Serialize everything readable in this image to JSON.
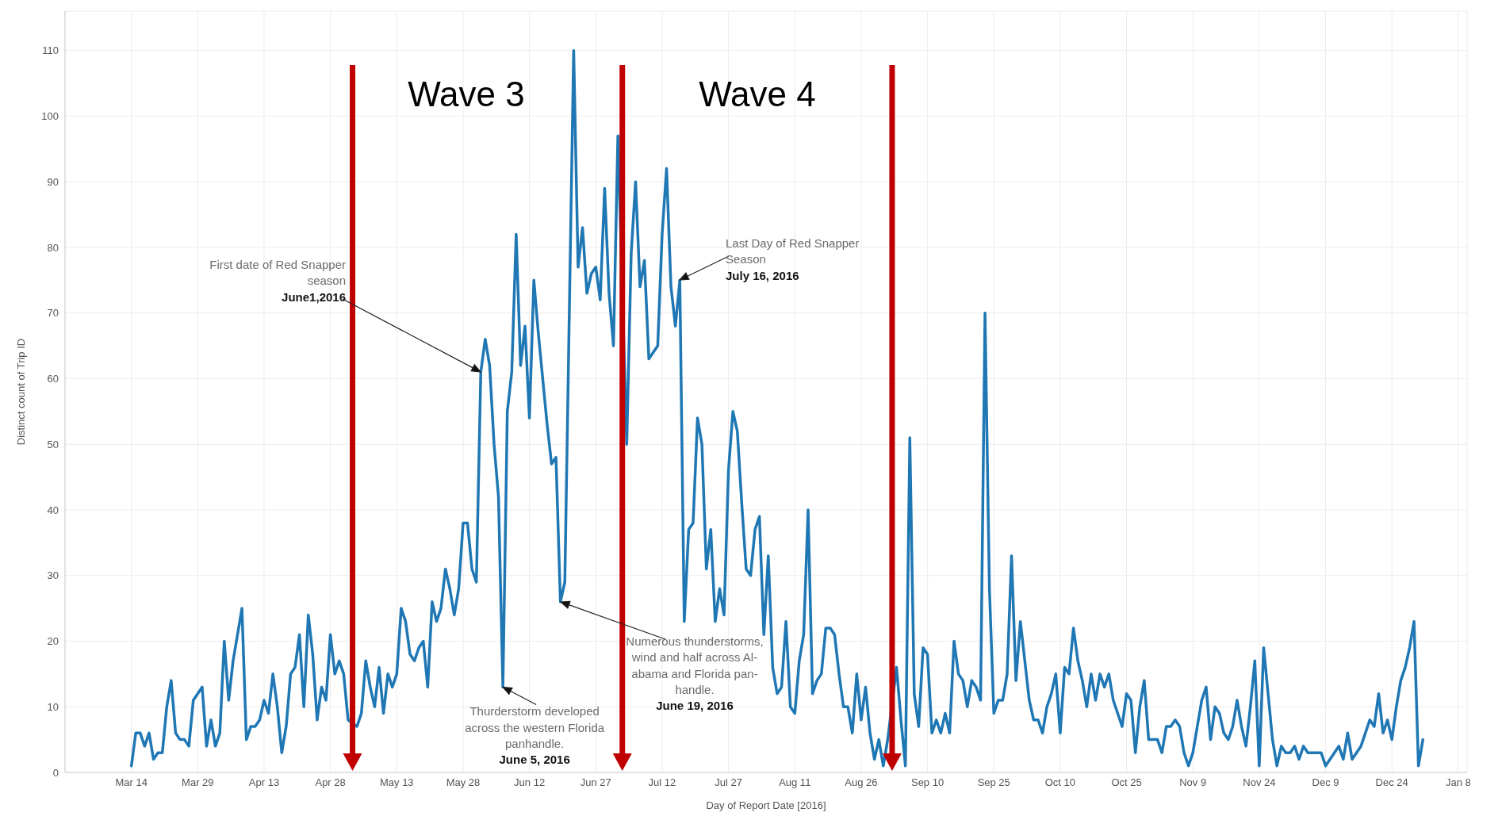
{
  "chart_data": {
    "type": "line",
    "xlabel": "Day of Report Date [2016]",
    "ylabel": "Distinct count of Trip ID",
    "x": [
      "2016-03-14",
      "2016-03-15",
      "2016-03-16",
      "2016-03-17",
      "2016-03-18",
      "2016-03-19",
      "2016-03-20",
      "2016-03-21",
      "2016-03-22",
      "2016-03-23",
      "2016-03-24",
      "2016-03-25",
      "2016-03-26",
      "2016-03-27",
      "2016-03-28",
      "2016-03-29",
      "2016-03-30",
      "2016-03-31",
      "2016-04-01",
      "2016-04-02",
      "2016-04-03",
      "2016-04-04",
      "2016-04-05",
      "2016-04-06",
      "2016-04-07",
      "2016-04-08",
      "2016-04-09",
      "2016-04-10",
      "2016-04-11",
      "2016-04-12",
      "2016-04-13",
      "2016-04-14",
      "2016-04-15",
      "2016-04-16",
      "2016-04-17",
      "2016-04-18",
      "2016-04-19",
      "2016-04-20",
      "2016-04-21",
      "2016-04-22",
      "2016-04-23",
      "2016-04-24",
      "2016-04-25",
      "2016-04-26",
      "2016-04-27",
      "2016-04-28",
      "2016-04-29",
      "2016-04-30",
      "2016-05-01",
      "2016-05-02",
      "2016-05-04",
      "2016-05-05",
      "2016-05-06",
      "2016-05-07",
      "2016-05-08",
      "2016-05-09",
      "2016-05-10",
      "2016-05-11",
      "2016-05-12",
      "2016-05-13",
      "2016-05-14",
      "2016-05-15",
      "2016-05-16",
      "2016-05-17",
      "2016-05-18",
      "2016-05-19",
      "2016-05-20",
      "2016-05-21",
      "2016-05-22",
      "2016-05-23",
      "2016-05-24",
      "2016-05-25",
      "2016-05-26",
      "2016-05-27",
      "2016-05-28",
      "2016-05-29",
      "2016-05-30",
      "2016-05-31",
      "2016-06-01",
      "2016-06-02",
      "2016-06-03",
      "2016-06-04",
      "2016-06-05",
      "2016-06-06",
      "2016-06-07",
      "2016-06-08",
      "2016-06-09",
      "2016-06-10",
      "2016-06-11",
      "2016-06-12",
      "2016-06-13",
      "2016-06-14",
      "2016-06-15",
      "2016-06-16",
      "2016-06-17",
      "2016-06-18",
      "2016-06-19",
      "2016-06-20",
      "2016-06-22",
      "2016-06-23",
      "2016-06-24",
      "2016-06-25",
      "2016-06-26",
      "2016-06-27",
      "2016-06-28",
      "2016-06-29",
      "2016-06-30",
      "2016-07-01",
      "2016-07-02",
      "2016-07-04",
      "2016-07-05",
      "2016-07-06",
      "2016-07-07",
      "2016-07-08",
      "2016-07-09",
      "2016-07-10",
      "2016-07-11",
      "2016-07-12",
      "2016-07-13",
      "2016-07-14",
      "2016-07-15",
      "2016-07-16",
      "2016-07-17",
      "2016-07-18",
      "2016-07-19",
      "2016-07-20",
      "2016-07-21",
      "2016-07-22",
      "2016-07-23",
      "2016-07-24",
      "2016-07-25",
      "2016-07-26",
      "2016-07-27",
      "2016-07-28",
      "2016-07-29",
      "2016-07-30",
      "2016-07-31",
      "2016-08-01",
      "2016-08-02",
      "2016-08-03",
      "2016-08-04",
      "2016-08-05",
      "2016-08-06",
      "2016-08-07",
      "2016-08-08",
      "2016-08-09",
      "2016-08-10",
      "2016-08-11",
      "2016-08-12",
      "2016-08-13",
      "2016-08-14",
      "2016-08-15",
      "2016-08-16",
      "2016-08-17",
      "2016-08-18",
      "2016-08-19",
      "2016-08-20",
      "2016-08-21",
      "2016-08-22",
      "2016-08-23",
      "2016-08-24",
      "2016-08-25",
      "2016-08-26",
      "2016-08-27",
      "2016-08-28",
      "2016-08-29",
      "2016-08-30",
      "2016-08-31",
      "2016-09-01",
      "2016-09-03",
      "2016-09-04",
      "2016-09-05",
      "2016-09-06",
      "2016-09-07",
      "2016-09-08",
      "2016-09-09",
      "2016-09-10",
      "2016-09-11",
      "2016-09-12",
      "2016-09-13",
      "2016-09-14",
      "2016-09-15",
      "2016-09-16",
      "2016-09-17",
      "2016-09-18",
      "2016-09-19",
      "2016-09-20",
      "2016-09-21",
      "2016-09-22",
      "2016-09-23",
      "2016-09-24",
      "2016-09-25",
      "2016-09-26",
      "2016-09-27",
      "2016-09-28",
      "2016-09-29",
      "2016-09-30",
      "2016-10-01",
      "2016-10-02",
      "2016-10-03",
      "2016-10-04",
      "2016-10-05",
      "2016-10-06",
      "2016-10-07",
      "2016-10-08",
      "2016-10-09",
      "2016-10-10",
      "2016-10-11",
      "2016-10-12",
      "2016-10-13",
      "2016-10-14",
      "2016-10-15",
      "2016-10-16",
      "2016-10-17",
      "2016-10-18",
      "2016-10-19",
      "2016-10-20",
      "2016-10-21",
      "2016-10-22",
      "2016-10-23",
      "2016-10-24",
      "2016-10-25",
      "2016-10-26",
      "2016-10-27",
      "2016-10-28",
      "2016-10-29",
      "2016-10-30",
      "2016-10-31",
      "2016-11-01",
      "2016-11-02",
      "2016-11-03",
      "2016-11-04",
      "2016-11-05",
      "2016-11-06",
      "2016-11-07",
      "2016-11-08",
      "2016-11-09",
      "2016-11-10",
      "2016-11-11",
      "2016-11-12",
      "2016-11-13",
      "2016-11-14",
      "2016-11-15",
      "2016-11-16",
      "2016-11-17",
      "2016-11-18",
      "2016-11-19",
      "2016-11-20",
      "2016-11-21",
      "2016-11-22",
      "2016-11-23",
      "2016-11-24",
      "2016-11-25",
      "2016-11-26",
      "2016-11-27",
      "2016-11-28",
      "2016-11-29",
      "2016-11-30",
      "2016-12-01",
      "2016-12-02",
      "2016-12-03",
      "2016-12-04",
      "2016-12-05",
      "2016-12-06",
      "2016-12-07",
      "2016-12-08",
      "2016-12-09",
      "2016-12-10",
      "2016-12-11",
      "2016-12-12",
      "2016-12-13",
      "2016-12-14",
      "2016-12-15",
      "2016-12-16",
      "2016-12-17",
      "2016-12-18",
      "2016-12-19",
      "2016-12-20",
      "2016-12-21",
      "2016-12-22",
      "2016-12-23",
      "2016-12-24",
      "2016-12-25",
      "2016-12-26",
      "2016-12-27",
      "2016-12-28",
      "2016-12-29",
      "2016-12-30",
      "2016-12-31"
    ],
    "series": [
      {
        "color": "#1f77b4",
        "values": [
          1,
          6,
          6,
          4,
          6,
          2,
          3,
          3,
          10,
          14,
          6,
          5,
          5,
          4,
          11,
          12,
          13,
          4,
          8,
          4,
          6,
          20,
          11,
          17,
          21,
          25,
          5,
          7,
          7,
          8,
          11,
          9,
          15,
          10,
          3,
          7,
          15,
          16,
          21,
          10,
          24,
          18,
          8,
          13,
          11,
          21,
          15,
          17,
          15,
          8,
          7,
          9,
          17,
          13,
          10,
          16,
          9,
          15,
          13,
          15,
          25,
          23,
          18,
          17,
          19,
          20,
          13,
          26,
          23,
          25,
          31,
          28,
          24,
          28,
          38,
          38,
          31,
          29,
          61,
          66,
          62,
          50,
          42,
          13,
          55,
          61,
          82,
          62,
          68,
          54,
          75,
          67,
          60,
          53,
          47,
          48,
          26,
          29,
          110,
          77,
          83,
          73,
          76,
          77,
          72,
          89,
          73,
          65,
          97,
          50,
          79,
          90,
          74,
          78,
          63,
          64,
          65,
          82,
          92,
          74,
          68,
          75,
          23,
          37,
          38,
          54,
          50,
          31,
          37,
          23,
          28,
          24,
          46,
          55,
          52,
          41,
          31,
          30,
          37,
          39,
          21,
          33,
          16,
          12,
          13,
          23,
          10,
          9,
          17,
          21,
          40,
          12,
          14,
          15,
          22,
          22,
          21,
          15,
          10,
          10,
          6,
          15,
          8,
          13,
          6,
          2,
          5,
          1,
          5,
          16,
          8,
          1,
          51,
          12,
          7,
          19,
          18,
          6,
          8,
          6,
          9,
          6,
          20,
          15,
          14,
          10,
          14,
          13,
          11,
          70,
          28,
          9,
          11,
          11,
          15,
          33,
          14,
          23,
          17,
          11,
          8,
          8,
          6,
          10,
          12,
          15,
          6,
          16,
          15,
          22,
          17,
          14,
          10,
          15,
          11,
          15,
          13,
          15,
          11,
          9,
          7,
          12,
          11,
          3,
          10,
          14,
          5,
          5,
          5,
          3,
          7,
          7,
          8,
          7,
          3,
          1,
          3,
          7,
          11,
          13,
          5,
          10,
          9,
          6,
          5,
          7,
          11,
          7,
          4,
          10,
          17,
          1,
          19,
          12,
          5,
          1,
          4,
          3,
          3,
          4,
          2,
          4,
          3,
          3,
          3,
          3,
          1,
          2,
          3,
          4,
          2,
          6,
          2,
          3,
          4,
          6,
          8,
          7,
          12,
          6,
          8,
          5,
          10,
          14,
          16,
          19,
          23,
          1,
          5
        ]
      }
    ],
    "xlim": [
      "2016-02-28",
      "2017-01-10"
    ],
    "xticks": [
      {
        "value": "2016-03-14",
        "label": "Mar 14"
      },
      {
        "value": "2016-03-29",
        "label": "Mar 29"
      },
      {
        "value": "2016-04-13",
        "label": "Apr 13"
      },
      {
        "value": "2016-04-28",
        "label": "Apr 28"
      },
      {
        "value": "2016-05-13",
        "label": "May 13"
      },
      {
        "value": "2016-05-28",
        "label": "May 28"
      },
      {
        "value": "2016-06-12",
        "label": "Jun 12"
      },
      {
        "value": "2016-06-27",
        "label": "Jun 27"
      },
      {
        "value": "2016-07-12",
        "label": "Jul 12"
      },
      {
        "value": "2016-07-27",
        "label": "Jul 27"
      },
      {
        "value": "2016-08-11",
        "label": "Aug 11"
      },
      {
        "value": "2016-08-26",
        "label": "Aug 26"
      },
      {
        "value": "2016-09-10",
        "label": "Sep 10"
      },
      {
        "value": "2016-09-25",
        "label": "Sep 25"
      },
      {
        "value": "2016-10-10",
        "label": "Oct 10"
      },
      {
        "value": "2016-10-25",
        "label": "Oct 25"
      },
      {
        "value": "2016-11-09",
        "label": "Nov 9"
      },
      {
        "value": "2016-11-24",
        "label": "Nov 24"
      },
      {
        "value": "2016-12-09",
        "label": "Dec 9"
      },
      {
        "value": "2016-12-24",
        "label": "Dec 24"
      },
      {
        "value": "2017-01-08",
        "label": "Jan 8"
      }
    ],
    "ylim": [
      0,
      116
    ],
    "yticks": [
      0,
      10,
      20,
      30,
      40,
      50,
      60,
      70,
      80,
      90,
      100,
      110
    ],
    "grid": true,
    "line_style": "solid",
    "ref_lines": [
      {
        "axis": "x",
        "value": "2016-05-03",
        "color": "#c00000"
      },
      {
        "axis": "x",
        "value": "2016-07-03",
        "color": "#c00000"
      },
      {
        "axis": "x",
        "value": "2016-09-02",
        "color": "#c00000"
      }
    ],
    "annotations": [
      "Wave 3",
      "Wave 4",
      "First date of Red Snapper\nseason\nJune1,2016",
      {
        "text": "Thurderstorm developed\nacross the western Florida\npanhandle.\nJune 5, 2016",
        "x": "2016-06-06",
        "y": 13
      },
      "Numerous thunderstorms,\nwind and half across Al-\nabama and Florida pan-\nhandle.\nJune 19, 2016",
      "Last Day of Red Snapper\nSeason\nJuly 16, 2016"
    ]
  }
}
